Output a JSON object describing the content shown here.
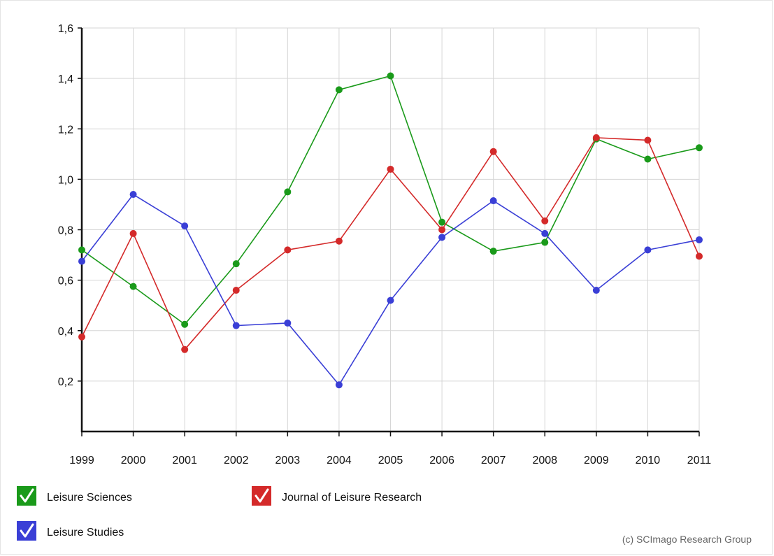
{
  "chart_data": {
    "type": "line",
    "title": "",
    "xlabel": "",
    "ylabel": "",
    "x": [
      "1999",
      "2000",
      "2001",
      "2002",
      "2003",
      "2004",
      "2005",
      "2006",
      "2007",
      "2008",
      "2009",
      "2010",
      "2011"
    ],
    "ylim": [
      0,
      1.6
    ],
    "yticks": [
      0.2,
      0.4,
      0.6,
      0.8,
      1.0,
      1.2,
      1.4,
      1.6
    ],
    "ytick_labels": [
      "0,2",
      "0,4",
      "0,6",
      "0,8",
      "1,0",
      "1,2",
      "1,4",
      "1,6"
    ],
    "grid": true,
    "legend_position": "bottom",
    "series": [
      {
        "name": "Leisure Sciences",
        "color": "#1a9a1a",
        "values": [
          0.72,
          0.575,
          0.425,
          0.665,
          0.95,
          1.355,
          1.41,
          0.83,
          0.715,
          0.75,
          1.16,
          1.08,
          1.125
        ]
      },
      {
        "name": "Journal of Leisure Research",
        "color": "#d42a2a",
        "values": [
          0.375,
          0.785,
          0.325,
          0.56,
          0.72,
          0.755,
          1.04,
          0.8,
          1.11,
          0.835,
          1.165,
          1.155,
          0.695
        ]
      },
      {
        "name": "Leisure Studies",
        "color": "#3a3fd6",
        "values": [
          0.675,
          0.94,
          0.815,
          0.42,
          0.43,
          0.185,
          0.52,
          0.77,
          0.915,
          0.785,
          0.56,
          0.72,
          0.76
        ]
      }
    ],
    "credit": "(c) SCImago Research Group"
  }
}
